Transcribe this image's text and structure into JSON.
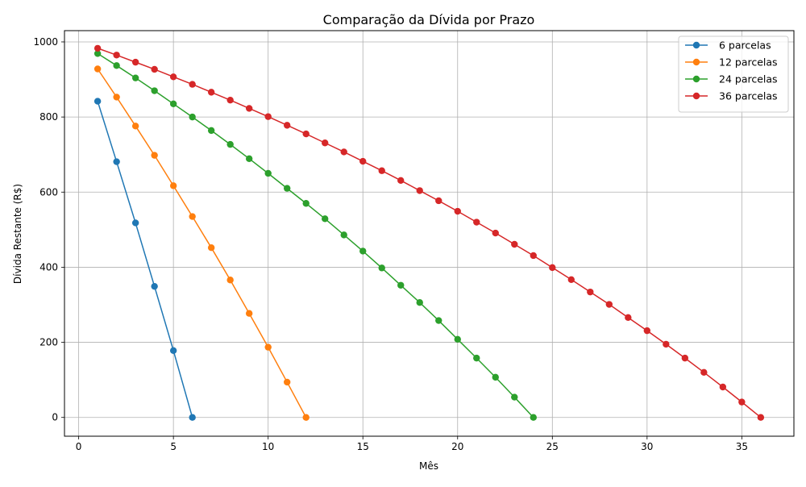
{
  "chart_data": {
    "type": "line",
    "title": "Comparação da Dívida por Prazo",
    "xlabel": "Mês",
    "ylabel": "Dívida Restante (R$)",
    "xlim": [
      -0.75,
      37.75
    ],
    "ylim": [
      -50,
      1030
    ],
    "xticks": [
      0,
      5,
      10,
      15,
      20,
      25,
      30,
      35
    ],
    "yticks": [
      0,
      200,
      400,
      600,
      800,
      1000
    ],
    "grid": true,
    "legend_position": "top-right",
    "series": [
      {
        "name": "6 parcelas",
        "color": "#1f77b4",
        "x": [
          1,
          2,
          3,
          4,
          5,
          6
        ],
        "values": [
          842,
          681,
          518,
          349,
          178,
          0
        ]
      },
      {
        "name": "12 parcelas",
        "color": "#ff7f0e",
        "x": [
          1,
          2,
          3,
          4,
          5,
          6,
          7,
          8,
          9,
          10,
          11,
          12
        ],
        "values": [
          928,
          853,
          776,
          698,
          617,
          535,
          452,
          366,
          277,
          187,
          94,
          0
        ]
      },
      {
        "name": "24 parcelas",
        "color": "#2ca02c",
        "x": [
          1,
          2,
          3,
          4,
          5,
          6,
          7,
          8,
          9,
          10,
          11,
          12,
          13,
          14,
          15,
          16,
          17,
          18,
          19,
          20,
          21,
          22,
          23,
          24
        ],
        "values": [
          969,
          937,
          904,
          870,
          835,
          800,
          764,
          727,
          689,
          650,
          610,
          570,
          529,
          486,
          443,
          398,
          352,
          306,
          258,
          208,
          158,
          107,
          54,
          0
        ]
      },
      {
        "name": "36 parcelas",
        "color": "#d62728",
        "x": [
          1,
          2,
          3,
          4,
          5,
          6,
          7,
          8,
          9,
          10,
          11,
          12,
          13,
          14,
          15,
          16,
          17,
          18,
          19,
          20,
          21,
          22,
          23,
          24,
          25,
          26,
          27,
          28,
          29,
          30,
          31,
          32,
          33,
          34,
          35,
          36
        ],
        "values": [
          983,
          965,
          946,
          927,
          907,
          887,
          866,
          845,
          823,
          801,
          778,
          755,
          731,
          707,
          682,
          657,
          631,
          604,
          577,
          549,
          520,
          491,
          461,
          431,
          399,
          367,
          334,
          301,
          266,
          231,
          195,
          158,
          120,
          81,
          41,
          0
        ]
      }
    ]
  }
}
